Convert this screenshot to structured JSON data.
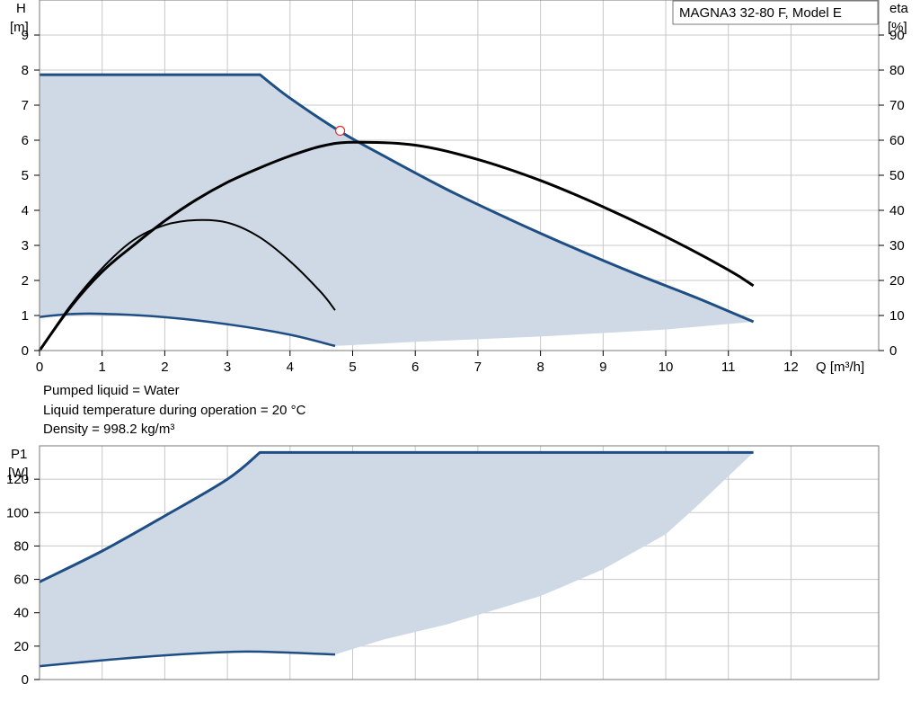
{
  "model_label": "MAGNA3 32-80 F, Model E",
  "notes": [
    "Pumped liquid = Water",
    "Liquid temperature during operation = 20 °C",
    "Density = 998.2 kg/m³"
  ],
  "colors": {
    "curve_blue": "#1f4e85",
    "fill": "#ced9e5",
    "eta_black": "#000000",
    "duty_point": "#e03030"
  },
  "chart_data": [
    {
      "type": "line",
      "ylabel_left": [
        "H",
        "[m]"
      ],
      "ylabel_right": [
        "eta",
        "[%]"
      ],
      "xlabel": "Q [m³/h]",
      "xlim": [
        0,
        13.4
      ],
      "ylim": [
        0,
        10
      ],
      "ylim_right": [
        0,
        100
      ],
      "x_ticks": [
        0,
        1,
        2,
        3,
        4,
        5,
        6,
        7,
        8,
        9,
        10,
        11,
        12
      ],
      "y_ticks": [
        0,
        1,
        2,
        3,
        4,
        5,
        6,
        7,
        8,
        9
      ],
      "y_ticks_right": [
        0,
        10,
        20,
        30,
        40,
        50,
        60,
        70,
        80,
        90
      ],
      "grid": true,
      "series": [
        {
          "role": "head_max",
          "axis": "left",
          "x": [
            0,
            3.52,
            4,
            4.8,
            5.5,
            6.5,
            7.5,
            8.5,
            9.5,
            10.5,
            11.4
          ],
          "y": [
            7.87,
            7.87,
            7.2,
            6.25,
            5.55,
            4.6,
            3.75,
            2.95,
            2.2,
            1.5,
            0.82
          ]
        },
        {
          "role": "head_min",
          "axis": "left",
          "x": [
            0,
            0.5,
            1,
            2,
            3,
            4,
            4.72
          ],
          "y": [
            0.96,
            1.04,
            1.05,
            0.95,
            0.75,
            0.45,
            0.13
          ]
        },
        {
          "role": "head_min_range_edge",
          "axis": "left",
          "x": [
            4.72,
            6,
            8,
            10,
            11.4
          ],
          "y": [
            0.13,
            0.25,
            0.4,
            0.6,
            0.82
          ]
        },
        {
          "role": "eta_max",
          "axis": "right",
          "x": [
            0,
            0.5,
            1,
            1.5,
            2,
            2.5,
            3,
            3.5,
            4,
            4.5,
            5,
            6,
            7,
            8,
            9,
            10,
            11,
            11.4
          ],
          "y": [
            0,
            12.5,
            22.5,
            30,
            37,
            43,
            48,
            52,
            55.5,
            58.3,
            59.4,
            58.6,
            54.5,
            48.5,
            41,
            32.5,
            23,
            18.5
          ]
        },
        {
          "role": "eta_min",
          "axis": "right",
          "x": [
            0,
            0.5,
            1,
            1.5,
            2,
            2.5,
            3,
            3.5,
            4,
            4.5,
            4.72
          ],
          "y": [
            0,
            13,
            23.5,
            31.5,
            35.8,
            37.2,
            36.5,
            32.5,
            25.5,
            16.5,
            11.5
          ]
        }
      ],
      "duty_point": {
        "x": 4.8,
        "y": 6.27
      }
    },
    {
      "type": "line",
      "ylabel": [
        "P1",
        "[W]"
      ],
      "xlim": [
        0,
        13.4
      ],
      "ylim": [
        0,
        140
      ],
      "y_ticks": [
        0,
        20,
        40,
        60,
        80,
        100,
        120
      ],
      "grid": true,
      "series": [
        {
          "role": "power_max",
          "x": [
            0,
            1,
            2,
            3,
            3.52,
            11.4
          ],
          "y": [
            58.5,
            77,
            98,
            120,
            136,
            136
          ]
        },
        {
          "role": "power_min",
          "x": [
            0,
            1,
            2,
            3,
            3.52,
            4.72
          ],
          "y": [
            8,
            11.5,
            14.5,
            16.5,
            16.7,
            15
          ]
        },
        {
          "role": "power_min_range_edge",
          "x": [
            4.72,
            5.5,
            6.5,
            8,
            9,
            10,
            10.5,
            11.4
          ],
          "y": [
            15,
            24,
            33,
            50,
            66,
            87,
            104,
            136
          ]
        }
      ]
    }
  ]
}
